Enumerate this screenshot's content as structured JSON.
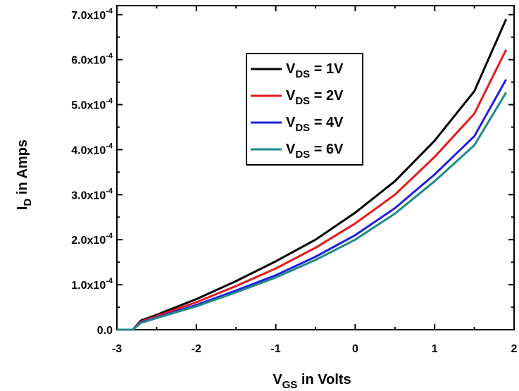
{
  "chart_data": {
    "type": "line",
    "xlabel": {
      "main": "V",
      "sub": "GS",
      "rest": " in Volts"
    },
    "ylabel": {
      "main": "I",
      "sub": "D",
      "rest": " in Amps"
    },
    "xlim": [
      -3,
      2
    ],
    "ylim": [
      0,
      0.00072
    ],
    "x_ticks": [
      -3,
      -2,
      -1,
      0,
      1,
      2
    ],
    "x_tick_labels": [
      "-3",
      "-2",
      "-1",
      "0",
      "1",
      "2"
    ],
    "y_ticks": [
      0,
      0.0001,
      0.0002,
      0.0003,
      0.0004,
      0.0005,
      0.0006,
      0.0007
    ],
    "y_tick_labels": [
      {
        "mant": "0.0",
        "exp": ""
      },
      {
        "mant": "1.0x10",
        "exp": "-4"
      },
      {
        "mant": "2.0x10",
        "exp": "-4"
      },
      {
        "mant": "3.0x10",
        "exp": "-4"
      },
      {
        "mant": "4.0x10",
        "exp": "-4"
      },
      {
        "mant": "5.0x10",
        "exp": "-4"
      },
      {
        "mant": "6.0x10",
        "exp": "-4"
      },
      {
        "mant": "7.0x10",
        "exp": "-4"
      }
    ],
    "grid": false,
    "legend_position": "top-center",
    "series": [
      {
        "name": "VDS = 1V",
        "legend": {
          "main": "V",
          "sub": "DS",
          "rest": " = 1V"
        },
        "color": "#000000",
        "x": [
          -3,
          -2.8,
          -2.7,
          -2.5,
          -2,
          -1.5,
          -1,
          -0.5,
          0,
          0.5,
          1,
          1.5,
          1.9
        ],
        "y": [
          0,
          0,
          2e-05,
          3.3e-05,
          6.8e-05,
          0.000108,
          0.000152,
          0.0002,
          0.00026,
          0.00033,
          0.00042,
          0.00053,
          0.00069
        ]
      },
      {
        "name": "VDS = 2V",
        "legend": {
          "main": "V",
          "sub": "DS",
          "rest": " = 2V"
        },
        "color": "#e31a1c",
        "x": [
          -3,
          -2.8,
          -2.7,
          -2.5,
          -2,
          -1.5,
          -1,
          -0.5,
          0,
          0.5,
          1,
          1.5,
          1.9
        ],
        "y": [
          0,
          0,
          1.8e-05,
          3e-05,
          6.1e-05,
          9.7e-05,
          0.000136,
          0.000182,
          0.000236,
          0.0003,
          0.000384,
          0.00048,
          0.000622
        ]
      },
      {
        "name": "VDS = 4V",
        "legend": {
          "main": "V",
          "sub": "DS",
          "rest": " = 4V"
        },
        "color": "#1f1fe0",
        "x": [
          -3,
          -2.8,
          -2.7,
          -2.5,
          -2,
          -1.5,
          -1,
          -0.5,
          0,
          0.5,
          1,
          1.5,
          1.9
        ],
        "y": [
          0,
          0,
          1.6e-05,
          2.7e-05,
          5.5e-05,
          8.7e-05,
          0.000121,
          0.000162,
          0.00021,
          0.00027,
          0.000345,
          0.00043,
          0.000556
        ]
      },
      {
        "name": "VDS = 6V",
        "legend": {
          "main": "V",
          "sub": "DS",
          "rest": " = 6V"
        },
        "color": "#1f8a8a",
        "x": [
          -3,
          -2.8,
          -2.7,
          -2.5,
          -2,
          -1.5,
          -1,
          -0.5,
          0,
          0.5,
          1,
          1.5,
          1.9
        ],
        "y": [
          0,
          0,
          1.5e-05,
          2.6e-05,
          5.2e-05,
          8.3e-05,
          0.000116,
          0.000155,
          0.0002,
          0.000258,
          0.00033,
          0.00041,
          0.000527
        ]
      }
    ]
  }
}
